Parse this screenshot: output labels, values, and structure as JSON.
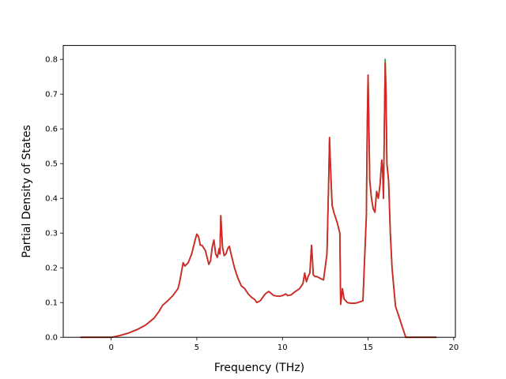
{
  "chart_data": {
    "type": "line",
    "title": "",
    "xlabel": "Frequency (THz)",
    "ylabel": "Partial Density of States",
    "xlim": [
      -2.8,
      20.1
    ],
    "ylim": [
      0,
      0.84
    ],
    "xticks": [
      0,
      5,
      10,
      15,
      20
    ],
    "xtick_labels": [
      "0",
      "5",
      "10",
      "15",
      "20"
    ],
    "yticks": [
      0.0,
      0.1,
      0.2,
      0.3,
      0.4,
      0.5,
      0.6,
      0.7,
      0.8
    ],
    "ytick_labels": [
      "0.0",
      "0.1",
      "0.2",
      "0.3",
      "0.4",
      "0.5",
      "0.6",
      "0.7",
      "0.8"
    ],
    "grid": false,
    "legend": "none",
    "series": [
      {
        "color": "#2ca02c",
        "x": [
          -1.8,
          0.0,
          0.5,
          1.0,
          1.5,
          2.0,
          2.5,
          2.8,
          3.0,
          3.3,
          3.6,
          3.9,
          4.0,
          4.2,
          4.3,
          4.5,
          4.7,
          4.9,
          5.0,
          5.1,
          5.2,
          5.3,
          5.5,
          5.7,
          5.8,
          5.9,
          6.0,
          6.1,
          6.2,
          6.3,
          6.35,
          6.4,
          6.5,
          6.6,
          6.7,
          6.8,
          6.9,
          7.0,
          7.2,
          7.4,
          7.6,
          7.8,
          8.0,
          8.2,
          8.4,
          8.5,
          8.7,
          9.0,
          9.2,
          9.5,
          9.8,
          10.0,
          10.2,
          10.3,
          10.5,
          10.7,
          11.0,
          11.2,
          11.3,
          11.4,
          11.5,
          11.6,
          11.7,
          11.75,
          11.8,
          11.9,
          12.0,
          12.2,
          12.4,
          12.6,
          12.7,
          12.75,
          12.8,
          12.9,
          13.0,
          13.2,
          13.35,
          13.4,
          13.5,
          13.6,
          13.8,
          14.0,
          14.2,
          14.4,
          14.7,
          14.9,
          14.95,
          15.0,
          15.05,
          15.1,
          15.2,
          15.3,
          15.4,
          15.5,
          15.6,
          15.7,
          15.8,
          15.85,
          15.9,
          15.95,
          16.0,
          16.05,
          16.1,
          16.2,
          16.3,
          16.4,
          16.6,
          16.8,
          17.0,
          17.2,
          17.3,
          17.5,
          18.0,
          19.0
        ],
        "y": [
          0.0,
          0.0,
          0.005,
          0.012,
          0.022,
          0.035,
          0.055,
          0.075,
          0.092,
          0.105,
          0.12,
          0.14,
          0.16,
          0.215,
          0.205,
          0.215,
          0.24,
          0.28,
          0.297,
          0.29,
          0.265,
          0.265,
          0.25,
          0.21,
          0.22,
          0.26,
          0.28,
          0.24,
          0.23,
          0.255,
          0.24,
          0.35,
          0.26,
          0.235,
          0.24,
          0.255,
          0.262,
          0.24,
          0.2,
          0.17,
          0.148,
          0.14,
          0.125,
          0.115,
          0.108,
          0.1,
          0.105,
          0.125,
          0.132,
          0.12,
          0.118,
          0.12,
          0.125,
          0.12,
          0.122,
          0.13,
          0.14,
          0.155,
          0.185,
          0.16,
          0.175,
          0.185,
          0.265,
          0.225,
          0.18,
          0.175,
          0.175,
          0.17,
          0.165,
          0.24,
          0.45,
          0.575,
          0.5,
          0.38,
          0.36,
          0.33,
          0.3,
          0.095,
          0.14,
          0.11,
          0.1,
          0.098,
          0.098,
          0.1,
          0.105,
          0.35,
          0.6,
          0.755,
          0.6,
          0.45,
          0.4,
          0.37,
          0.36,
          0.42,
          0.4,
          0.44,
          0.51,
          0.48,
          0.4,
          0.6,
          0.8,
          0.7,
          0.5,
          0.45,
          0.3,
          0.2,
          0.09,
          0.06,
          0.03,
          0.0,
          0.0,
          0.0,
          0.0,
          0.0
        ]
      },
      {
        "color": "#d62728",
        "x": [
          -1.8,
          0.0,
          0.5,
          1.0,
          1.5,
          2.0,
          2.5,
          2.8,
          3.0,
          3.3,
          3.6,
          3.9,
          4.0,
          4.2,
          4.3,
          4.5,
          4.7,
          4.9,
          5.0,
          5.1,
          5.2,
          5.3,
          5.5,
          5.7,
          5.8,
          5.9,
          6.0,
          6.1,
          6.2,
          6.3,
          6.35,
          6.4,
          6.5,
          6.6,
          6.7,
          6.8,
          6.9,
          7.0,
          7.2,
          7.4,
          7.6,
          7.8,
          8.0,
          8.2,
          8.4,
          8.5,
          8.7,
          9.0,
          9.2,
          9.5,
          9.8,
          10.0,
          10.2,
          10.3,
          10.5,
          10.7,
          11.0,
          11.2,
          11.3,
          11.4,
          11.5,
          11.6,
          11.7,
          11.75,
          11.8,
          11.9,
          12.0,
          12.2,
          12.4,
          12.6,
          12.7,
          12.75,
          12.8,
          12.9,
          13.0,
          13.2,
          13.35,
          13.4,
          13.5,
          13.6,
          13.8,
          14.0,
          14.2,
          14.4,
          14.7,
          14.9,
          14.95,
          15.0,
          15.05,
          15.1,
          15.2,
          15.3,
          15.4,
          15.5,
          15.6,
          15.7,
          15.8,
          15.85,
          15.9,
          15.95,
          16.0,
          16.05,
          16.1,
          16.2,
          16.3,
          16.4,
          16.6,
          16.8,
          17.0,
          17.2,
          17.3,
          17.5,
          18.0,
          19.0
        ],
        "y": [
          0.0,
          0.0,
          0.005,
          0.012,
          0.022,
          0.035,
          0.055,
          0.075,
          0.092,
          0.105,
          0.12,
          0.14,
          0.16,
          0.215,
          0.205,
          0.215,
          0.24,
          0.28,
          0.297,
          0.29,
          0.265,
          0.265,
          0.25,
          0.21,
          0.22,
          0.26,
          0.28,
          0.24,
          0.23,
          0.255,
          0.24,
          0.35,
          0.26,
          0.235,
          0.24,
          0.255,
          0.262,
          0.24,
          0.2,
          0.17,
          0.148,
          0.14,
          0.125,
          0.115,
          0.108,
          0.1,
          0.105,
          0.125,
          0.132,
          0.12,
          0.118,
          0.12,
          0.125,
          0.12,
          0.122,
          0.13,
          0.14,
          0.155,
          0.185,
          0.16,
          0.175,
          0.185,
          0.265,
          0.225,
          0.18,
          0.175,
          0.175,
          0.17,
          0.165,
          0.24,
          0.45,
          0.575,
          0.5,
          0.38,
          0.36,
          0.33,
          0.3,
          0.095,
          0.14,
          0.11,
          0.1,
          0.098,
          0.098,
          0.1,
          0.105,
          0.35,
          0.6,
          0.755,
          0.6,
          0.45,
          0.4,
          0.37,
          0.36,
          0.42,
          0.4,
          0.44,
          0.51,
          0.48,
          0.4,
          0.6,
          0.79,
          0.7,
          0.5,
          0.45,
          0.3,
          0.2,
          0.09,
          0.06,
          0.03,
          0.0,
          0.0,
          0.0,
          0.0,
          0.0
        ]
      }
    ]
  }
}
